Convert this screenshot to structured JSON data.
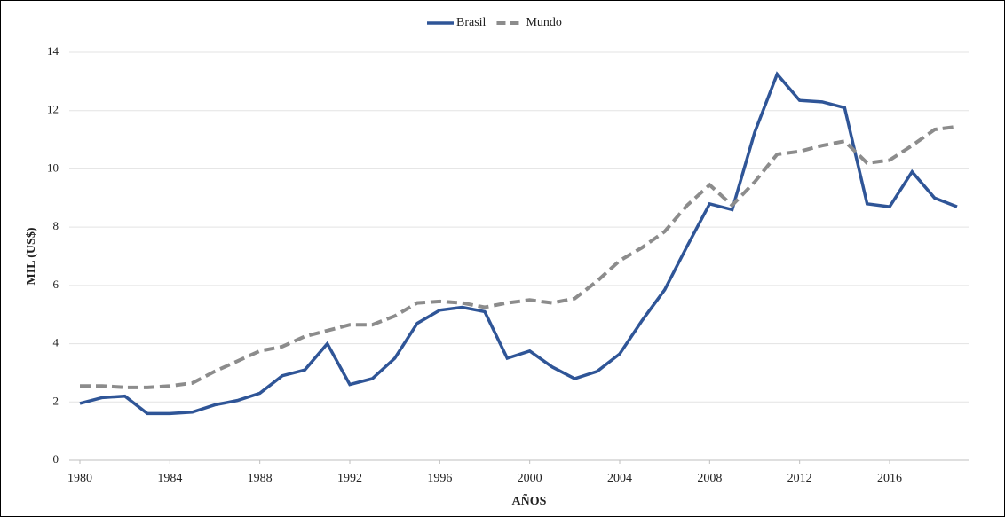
{
  "chart_data": {
    "type": "line",
    "x": [
      1980,
      1981,
      1982,
      1983,
      1984,
      1985,
      1986,
      1987,
      1988,
      1989,
      1990,
      1991,
      1992,
      1993,
      1994,
      1995,
      1996,
      1997,
      1998,
      1999,
      2000,
      2001,
      2002,
      2003,
      2004,
      2005,
      2006,
      2007,
      2008,
      2009,
      2010,
      2011,
      2012,
      2013,
      2014,
      2015,
      2016,
      2017,
      2018,
      2019
    ],
    "series": [
      {
        "name": "Brasil",
        "color": "#2f5597",
        "dash": false,
        "values": [
          1.95,
          2.15,
          2.2,
          1.6,
          1.6,
          1.65,
          1.9,
          2.05,
          2.3,
          2.9,
          3.1,
          4.0,
          2.6,
          2.8,
          3.5,
          4.7,
          5.15,
          5.25,
          5.1,
          3.5,
          3.75,
          3.2,
          2.8,
          3.05,
          3.65,
          4.8,
          5.85,
          7.35,
          8.8,
          8.6,
          11.25,
          13.25,
          12.35,
          12.3,
          12.1,
          8.8,
          8.7,
          9.9,
          9.0,
          8.7
        ]
      },
      {
        "name": "Mundo",
        "color": "#8c8c8c",
        "dash": true,
        "values": [
          2.55,
          2.55,
          2.5,
          2.5,
          2.55,
          2.65,
          3.05,
          3.4,
          3.75,
          3.9,
          4.25,
          4.45,
          4.65,
          4.65,
          4.95,
          5.4,
          5.45,
          5.4,
          5.25,
          5.4,
          5.5,
          5.4,
          5.55,
          6.15,
          6.85,
          7.3,
          7.85,
          8.75,
          9.45,
          8.75,
          9.55,
          10.5,
          10.6,
          10.8,
          10.95,
          10.2,
          10.3,
          10.8,
          11.35,
          11.45
        ]
      }
    ],
    "xlim": [
      1980,
      2019
    ],
    "xticks": [
      1980,
      1984,
      1988,
      1992,
      1996,
      2000,
      2004,
      2008,
      2012,
      2016
    ],
    "ylim": [
      0,
      14
    ],
    "yticks": [
      0,
      2,
      4,
      6,
      8,
      10,
      12,
      14
    ],
    "x_label": "AÑOS",
    "y_label": "MIL (US$)",
    "grid": true,
    "legend": "top"
  }
}
